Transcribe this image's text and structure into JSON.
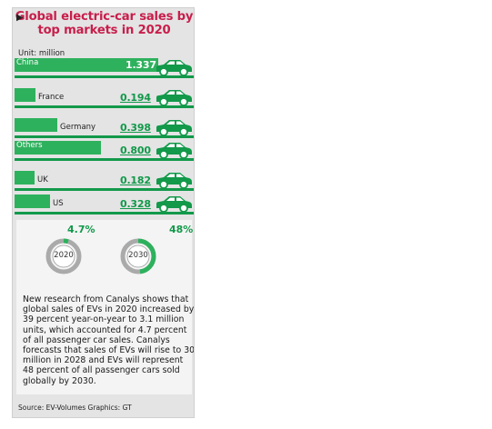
{
  "title": "Global electric-car sales by top markets in 2020",
  "unit": "Unit: million",
  "colors": {
    "title": "#c81e4b",
    "bar": "#2eb15d",
    "bar_dark": "#12994a",
    "panel": "#e4e4e4"
  },
  "icons": {
    "arrow": "triangle-right-icon",
    "car": "car-icon"
  },
  "chart_data": [
    {
      "type": "bar",
      "title": "Global electric-car sales by top markets in 2020",
      "unit": "Unit: million",
      "categories": [
        "China",
        "France",
        "Germany",
        "Others",
        "UK",
        "US"
      ],
      "values": [
        1.337,
        0.194,
        0.398,
        0.8,
        0.182,
        0.328
      ],
      "value_labels": [
        "1.337",
        "0.194",
        "0.398",
        "0.800",
        "0.182",
        "0.328"
      ]
    },
    {
      "type": "pie",
      "title": "",
      "categories": [
        "2020",
        "2030"
      ],
      "values": [
        4.7,
        48
      ],
      "value_labels": [
        "4.7%",
        "48%"
      ]
    }
  ],
  "body_text": "New research from Canalys shows that global sales of EVs in 2020 increased by 39 percent year-on-year to 3.1 million units, which accounted for 4.7 percent of all passenger car sales. Canalys forecasts that sales of EVs will rise to 30 million in 2028 and EVs will represent 48 percent of all passenger cars sold globally by 2030.",
  "source": "Source: EV-Volumes   Graphics: GT"
}
